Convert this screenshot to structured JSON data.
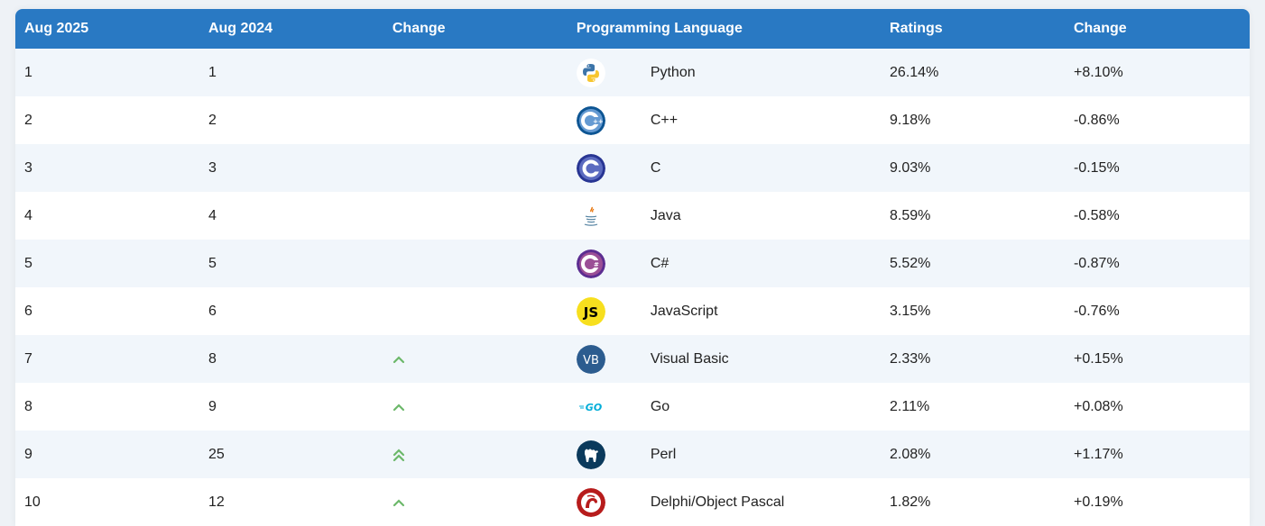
{
  "header": {
    "col_current": "Aug 2025",
    "col_previous": "Aug 2024",
    "col_change": "Change",
    "col_language": "Programming Language",
    "col_ratings": "Ratings",
    "col_rating_change": "Change"
  },
  "rows": [
    {
      "current": "1",
      "previous": "1",
      "trend": "none",
      "language": "Python",
      "ratings": "26.14%",
      "change": "+8.10%",
      "icon": "python-icon"
    },
    {
      "current": "2",
      "previous": "2",
      "trend": "none",
      "language": "C++",
      "ratings": "9.18%",
      "change": "-0.86%",
      "icon": "cpp-icon"
    },
    {
      "current": "3",
      "previous": "3",
      "trend": "none",
      "language": "C",
      "ratings": "9.03%",
      "change": "-0.15%",
      "icon": "c-icon"
    },
    {
      "current": "4",
      "previous": "4",
      "trend": "none",
      "language": "Java",
      "ratings": "8.59%",
      "change": "-0.58%",
      "icon": "java-icon"
    },
    {
      "current": "5",
      "previous": "5",
      "trend": "none",
      "language": "C#",
      "ratings": "5.52%",
      "change": "-0.87%",
      "icon": "csharp-icon"
    },
    {
      "current": "6",
      "previous": "6",
      "trend": "none",
      "language": "JavaScript",
      "ratings": "3.15%",
      "change": "-0.76%",
      "icon": "javascript-icon"
    },
    {
      "current": "7",
      "previous": "8",
      "trend": "up",
      "language": "Visual Basic",
      "ratings": "2.33%",
      "change": "+0.15%",
      "icon": "visual-basic-icon"
    },
    {
      "current": "8",
      "previous": "9",
      "trend": "up",
      "language": "Go",
      "ratings": "2.11%",
      "change": "+0.08%",
      "icon": "go-icon"
    },
    {
      "current": "9",
      "previous": "25",
      "trend": "double-up",
      "language": "Perl",
      "ratings": "2.08%",
      "change": "+1.17%",
      "icon": "perl-icon"
    },
    {
      "current": "10",
      "previous": "12",
      "trend": "up",
      "language": "Delphi/Object Pascal",
      "ratings": "1.82%",
      "change": "+0.19%",
      "icon": "delphi-icon"
    }
  ],
  "colors": {
    "header_bg": "#2979c3",
    "row_alt": "#f1f6fb",
    "trend_up": "#6cb86a"
  }
}
